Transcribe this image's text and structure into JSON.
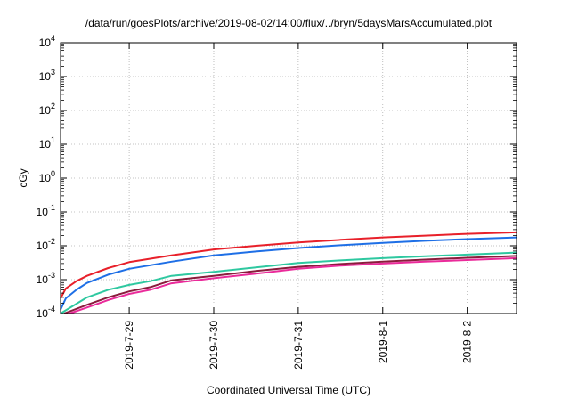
{
  "chart_data": {
    "type": "line",
    "title": "/data/run/goesPlots/archive/2019-08-02/14:00/flux/../bryn/5daysMarsAccumulated.plot",
    "xlabel": "Coordinated Universal Time (UTC)",
    "ylabel": "cGy",
    "y_scale": "log",
    "ylim": [
      0.0001,
      10000
    ],
    "xlim": [
      "2019-07-28 04:30",
      "2019-08-02 14:00"
    ],
    "grid": true,
    "x_ticks": [
      "2019-7-29",
      "2019-7-30",
      "2019-7-31",
      "2019-8-1",
      "2019-8-2"
    ],
    "y_ticks": [
      {
        "base": "10",
        "exp": "-4"
      },
      {
        "base": "10",
        "exp": "-3"
      },
      {
        "base": "10",
        "exp": "-2"
      },
      {
        "base": "10",
        "exp": "-1"
      },
      {
        "base": "10",
        "exp": "0"
      },
      {
        "base": "10",
        "exp": "1"
      },
      {
        "base": "10",
        "exp": "2"
      },
      {
        "base": "10",
        "exp": "3"
      },
      {
        "base": "10",
        "exp": "4"
      }
    ],
    "series": [
      {
        "color": "#e8202a",
        "x": [
          "2019-07-28 04:30",
          "2019-07-28 06:00",
          "2019-07-28 09:00",
          "2019-07-28 12:00",
          "2019-07-28 18:00",
          "2019-07-29 00:00",
          "2019-07-29 12:00",
          "2019-07-30 00:00",
          "2019-07-30 12:00",
          "2019-07-31 00:00",
          "2019-07-31 12:00",
          "2019-08-01 00:00",
          "2019-08-01 12:00",
          "2019-08-02 00:00",
          "2019-08-02 14:00"
        ],
        "y": [
          0.00028,
          0.00055,
          0.0009,
          0.0013,
          0.0022,
          0.0033,
          0.0052,
          0.0078,
          0.01,
          0.0126,
          0.015,
          0.0177,
          0.02,
          0.0225,
          0.025
        ]
      },
      {
        "color": "#1e6fe6",
        "x": [
          "2019-07-28 04:30",
          "2019-07-28 06:00",
          "2019-07-28 09:00",
          "2019-07-28 12:00",
          "2019-07-28 18:00",
          "2019-07-29 00:00",
          "2019-07-29 12:00",
          "2019-07-30 00:00",
          "2019-07-30 12:00",
          "2019-07-31 00:00",
          "2019-07-31 12:00",
          "2019-08-01 00:00",
          "2019-08-01 12:00",
          "2019-08-02 00:00",
          "2019-08-02 14:00"
        ],
        "y": [
          0.00013,
          0.00028,
          0.0005,
          0.0008,
          0.0014,
          0.0021,
          0.0034,
          0.0052,
          0.0068,
          0.0086,
          0.0104,
          0.0122,
          0.014,
          0.0158,
          0.0177
        ]
      },
      {
        "color": "#2ec8a0",
        "x": [
          "2019-07-28 04:30",
          "2019-07-28 12:00",
          "2019-07-28 18:00",
          "2019-07-29 00:00",
          "2019-07-29 06:00",
          "2019-07-29 12:00",
          "2019-07-30 00:00",
          "2019-07-30 12:00",
          "2019-07-31 00:00",
          "2019-07-31 12:00",
          "2019-08-01 00:00",
          "2019-08-01 12:00",
          "2019-08-02 00:00",
          "2019-08-02 14:00"
        ],
        "y": [
          0.0001,
          0.0003,
          0.0005,
          0.0007,
          0.0009,
          0.0013,
          0.0017,
          0.0023,
          0.0031,
          0.0037,
          0.0043,
          0.0049,
          0.0055,
          0.0063
        ]
      },
      {
        "color": "#8a1c3c",
        "x": [
          "2019-07-28 05:30",
          "2019-07-28 12:00",
          "2019-07-28 18:00",
          "2019-07-29 00:00",
          "2019-07-29 06:00",
          "2019-07-29 12:00",
          "2019-07-30 00:00",
          "2019-07-30 12:00",
          "2019-07-31 00:00",
          "2019-07-31 12:00",
          "2019-08-01 00:00",
          "2019-08-01 12:00",
          "2019-08-02 00:00",
          "2019-08-02 14:00"
        ],
        "y": [
          0.0001,
          0.00018,
          0.0003,
          0.00045,
          0.0006,
          0.00095,
          0.0013,
          0.0018,
          0.0024,
          0.0029,
          0.0034,
          0.0039,
          0.0044,
          0.005
        ]
      },
      {
        "color": "#ea2a9a",
        "x": [
          "2019-07-28 07:00",
          "2019-07-28 12:00",
          "2019-07-28 18:00",
          "2019-07-29 00:00",
          "2019-07-29 06:00",
          "2019-07-29 12:00",
          "2019-07-30 00:00",
          "2019-07-30 12:00",
          "2019-07-31 00:00",
          "2019-07-31 12:00",
          "2019-08-01 00:00",
          "2019-08-01 12:00",
          "2019-08-02 00:00",
          "2019-08-02 14:00"
        ],
        "y": [
          0.0001,
          0.00015,
          0.00025,
          0.00038,
          0.0005,
          0.00078,
          0.0011,
          0.0015,
          0.0021,
          0.0026,
          0.003,
          0.0034,
          0.0038,
          0.0043
        ]
      }
    ]
  }
}
